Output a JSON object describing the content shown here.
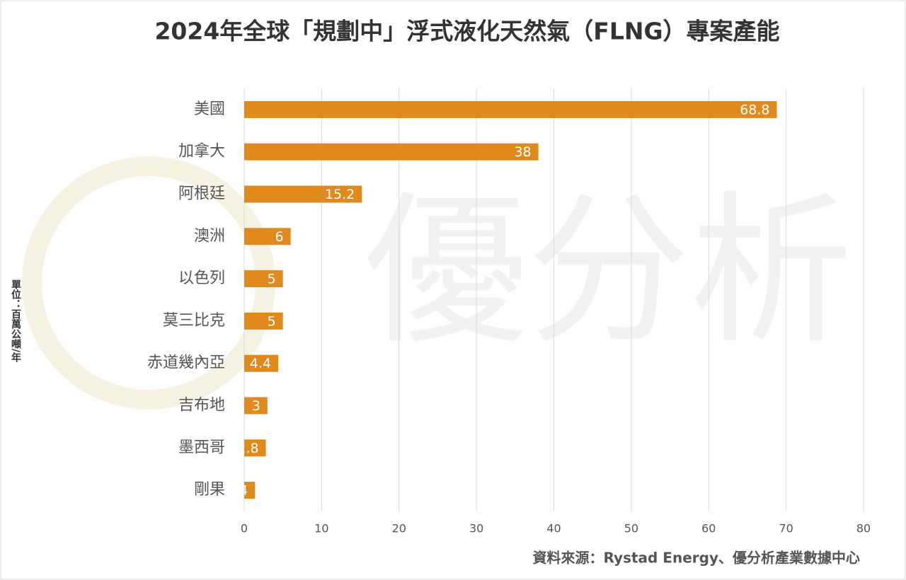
{
  "chart_data": {
    "type": "barh",
    "title": "2024年全球「規劃中」浮式液化天然氣（FLNG）專案產能",
    "ylabel": "單位：百萬公噸/年",
    "source": "資料來源：Rystad Energy、優分析產業數據中心",
    "watermark": "優分析",
    "categories": [
      "美國",
      "加拿大",
      "阿根廷",
      "澳洲",
      "以色列",
      "莫三比克",
      "赤道幾內亞",
      "吉布地",
      "墨西哥",
      "剛果"
    ],
    "values": [
      68.8,
      38,
      15.2,
      6,
      5,
      5,
      4.4,
      3,
      2.8,
      1.4
    ],
    "color": "#e08a1e",
    "xlim": [
      0,
      80
    ],
    "xticks": [
      0,
      10,
      20,
      30,
      40,
      50,
      60,
      70,
      80
    ],
    "grid": true
  }
}
